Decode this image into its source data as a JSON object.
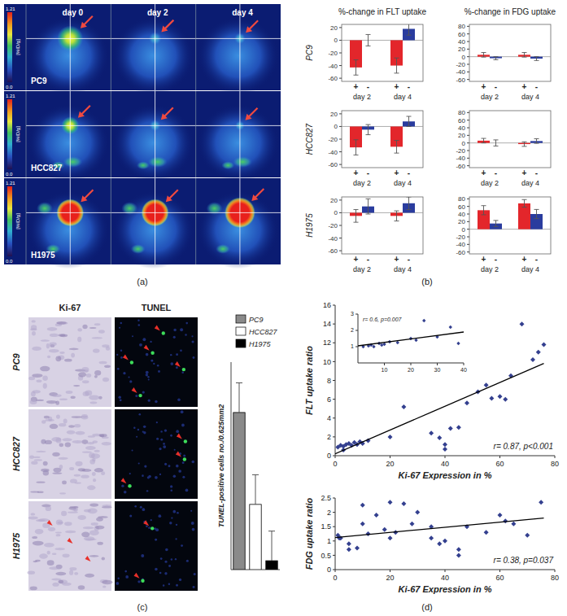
{
  "chart_data": [
    {
      "type": "bar",
      "title": "%-change in FLT uptake",
      "ylabel": "PC9",
      "categories": [
        "day 2",
        "day 4"
      ],
      "series": [
        {
          "name": "+",
          "color": "#e3262b",
          "values": [
            -43,
            -40
          ],
          "errors": [
            12,
            12
          ]
        },
        {
          "name": "-",
          "color": "#2a3c9e",
          "values": [
            0,
            18
          ],
          "errors": [
            9,
            10
          ]
        }
      ],
      "ylim": [
        -65,
        25
      ],
      "yticks": [
        -60,
        -40,
        -20,
        0,
        20
      ]
    },
    {
      "type": "bar",
      "title": "%-change in FDG uptake",
      "categories": [
        "day 2",
        "day 4"
      ],
      "series": [
        {
          "name": "+",
          "color": "#e3262b",
          "values": [
            5,
            5
          ],
          "errors": [
            6,
            6
          ]
        },
        {
          "name": "-",
          "color": "#2a3c9e",
          "values": [
            -4,
            -5
          ],
          "errors": [
            4,
            5
          ]
        }
      ],
      "ylim": [
        -65,
        85
      ],
      "yticks": [
        -60,
        -40,
        -20,
        0,
        20,
        40,
        60,
        80
      ]
    },
    {
      "type": "bar",
      "ylabel": "HCC827",
      "categories": [
        "day 2",
        "day 4"
      ],
      "series": [
        {
          "name": "+",
          "color": "#e3262b",
          "values": [
            -33,
            -32
          ],
          "errors": [
            12,
            10
          ]
        },
        {
          "name": "-",
          "color": "#2a3c9e",
          "values": [
            -5,
            8
          ],
          "errors": [
            8,
            8
          ]
        }
      ],
      "ylim": [
        -65,
        25
      ],
      "yticks": [
        -60,
        -40,
        -20,
        0,
        20
      ]
    },
    {
      "type": "bar",
      "categories": [
        "day 2",
        "day 4"
      ],
      "series": [
        {
          "name": "+",
          "color": "#e3262b",
          "values": [
            6,
            -3
          ],
          "errors": [
            6,
            6
          ]
        },
        {
          "name": "-",
          "color": "#2a3c9e",
          "values": [
            0,
            5
          ],
          "errors": [
            8,
            6
          ]
        }
      ],
      "ylim": [
        -65,
        85
      ],
      "yticks": [
        -60,
        -40,
        -20,
        0,
        20,
        40,
        60,
        80
      ]
    },
    {
      "type": "bar",
      "ylabel": "H1975",
      "categories": [
        "day 2",
        "day 4"
      ],
      "series": [
        {
          "name": "+",
          "color": "#e3262b",
          "values": [
            -5,
            -5
          ],
          "errors": [
            10,
            8
          ]
        },
        {
          "name": "-",
          "color": "#2a3c9e",
          "values": [
            10,
            15
          ],
          "errors": [
            12,
            10
          ]
        }
      ],
      "ylim": [
        -65,
        25
      ],
      "yticks": [
        -60,
        -40,
        -20,
        0,
        20
      ]
    },
    {
      "type": "bar",
      "categories": [
        "day 2",
        "day 4"
      ],
      "series": [
        {
          "name": "+",
          "color": "#e3262b",
          "values": [
            50,
            68
          ],
          "errors": [
            12,
            10
          ]
        },
        {
          "name": "-",
          "color": "#2a3c9e",
          "values": [
            15,
            40
          ],
          "errors": [
            8,
            12
          ]
        }
      ],
      "ylim": [
        -65,
        85
      ],
      "yticks": [
        -60,
        -40,
        -20,
        0,
        20,
        40,
        60,
        80
      ]
    },
    {
      "type": "bar",
      "ylabel": "TUNEL-positive cells no./0.625mm2",
      "categories": [
        "PC9",
        "HCC827",
        "H1975"
      ],
      "values": [
        26.5,
        11,
        1.5
      ],
      "errors": [
        5,
        5,
        5
      ],
      "colors": [
        "#8a8a8a",
        "#ffffff",
        "#000000"
      ],
      "legend": "top",
      "ylim": [
        0,
        35
      ],
      "tick_labels": false
    },
    {
      "type": "scatter",
      "xlabel": "Ki-67 Expression in %",
      "ylabel": "FLT uptake ratio",
      "xlim": [
        0,
        80
      ],
      "ylim": [
        0,
        16
      ],
      "xticks": [
        0,
        20,
        40,
        60,
        80
      ],
      "yticks": [
        0,
        2,
        4,
        6,
        8,
        10,
        12,
        14,
        16
      ],
      "annotations": [
        "r= 0.87, p<0.001"
      ],
      "series": [
        {
          "type": "scatter",
          "marker": "diamond",
          "color": "#34408f",
          "x": [
            1,
            2,
            3,
            3,
            4,
            5,
            6,
            7,
            8,
            9,
            10,
            12,
            20,
            25,
            35,
            38,
            40,
            40,
            42,
            45,
            48,
            52,
            55,
            57,
            60,
            62,
            64,
            68,
            72,
            74,
            76
          ],
          "values": [
            0.9,
            1.1,
            0.6,
            1.0,
            1.2,
            1.3,
            1.1,
            1.4,
            1.2,
            1.5,
            1.3,
            1.6,
            2.0,
            5.2,
            2.4,
            1.9,
            1.2,
            0.7,
            2.9,
            3.0,
            5.6,
            6.8,
            7.5,
            6.1,
            6.3,
            6.0,
            8.5,
            14.0,
            10.2,
            11.0,
            11.8
          ]
        },
        {
          "type": "line",
          "color": "#000000",
          "x": [
            0,
            76
          ],
          "values": [
            0.2,
            9.8
          ]
        }
      ]
    },
    {
      "type": "scatter",
      "xlim": [
        0,
        40
      ],
      "ylim": [
        0,
        3
      ],
      "xticks": [
        10,
        20,
        30,
        40
      ],
      "yticks": [
        1,
        2,
        3
      ],
      "annotations": [
        "r= 0.6, p=0.007"
      ],
      "series": [
        {
          "type": "scatter",
          "marker": "diamond",
          "color": "#34408f",
          "x": [
            2,
            4,
            5,
            6,
            8,
            9,
            10,
            12,
            15,
            20,
            22,
            25,
            30,
            35,
            38
          ],
          "values": [
            1.0,
            1.05,
            1.1,
            1.0,
            1.2,
            1.1,
            1.15,
            1.3,
            1.25,
            1.5,
            1.4,
            2.6,
            1.6,
            2.2,
            1.2
          ]
        },
        {
          "type": "line",
          "color": "#000000",
          "x": [
            0,
            40
          ],
          "values": [
            1.05,
            1.9
          ]
        }
      ]
    },
    {
      "type": "scatter",
      "xlabel": "Ki-67 Expression in %",
      "ylabel": "FDG uptake ratio",
      "xlim": [
        0,
        80
      ],
      "ylim": [
        0,
        2.5
      ],
      "xticks": [
        0,
        20,
        40,
        60,
        80
      ],
      "yticks": [
        0,
        0.5,
        1,
        1.5,
        2,
        2.5
      ],
      "annotations": [
        "r= 0.38, p=0.037"
      ],
      "series": [
        {
          "type": "scatter",
          "marker": "diamond",
          "color": "#34408f",
          "x": [
            1,
            1.5,
            2,
            5,
            5,
            8,
            10,
            10,
            12,
            15,
            18,
            20,
            20,
            22,
            25,
            28,
            30,
            35,
            35,
            38,
            40,
            45,
            45,
            48,
            55,
            60,
            62,
            65,
            70,
            75
          ],
          "values": [
            1.2,
            1.1,
            1.1,
            0.9,
            0.7,
            0.75,
            2.25,
            1.6,
            1.25,
            1.9,
            1.4,
            2.35,
            1.1,
            1.3,
            2.3,
            1.6,
            2.0,
            1.5,
            1.1,
            0.9,
            1.0,
            0.7,
            0.5,
            1.5,
            1.3,
            1.9,
            1.7,
            1.6,
            1.2,
            2.35
          ]
        },
        {
          "type": "line",
          "color": "#000000",
          "x": [
            0,
            76
          ],
          "values": [
            1.12,
            1.8
          ]
        }
      ]
    }
  ],
  "figure": {
    "panel_labels": [
      "(a)",
      "(b)",
      "(c)",
      "(d)"
    ],
    "pet": {
      "days": [
        "day 0",
        "day 2",
        "day 4"
      ],
      "cell_lines": [
        "PC9",
        "HCC827",
        "H1975"
      ],
      "colorbar_range": [
        0,
        1.21
      ],
      "colorbar_ticks": [
        1.21,
        {
          "value": 0,
          "label": "0.0"
        }
      ],
      "colorbar_label": "[%ID/g]"
    },
    "histology": {
      "columns": [
        "Ki-67",
        "TUNEL"
      ],
      "cell_lines": [
        "PC9",
        "HCC827",
        "H1975"
      ]
    }
  }
}
